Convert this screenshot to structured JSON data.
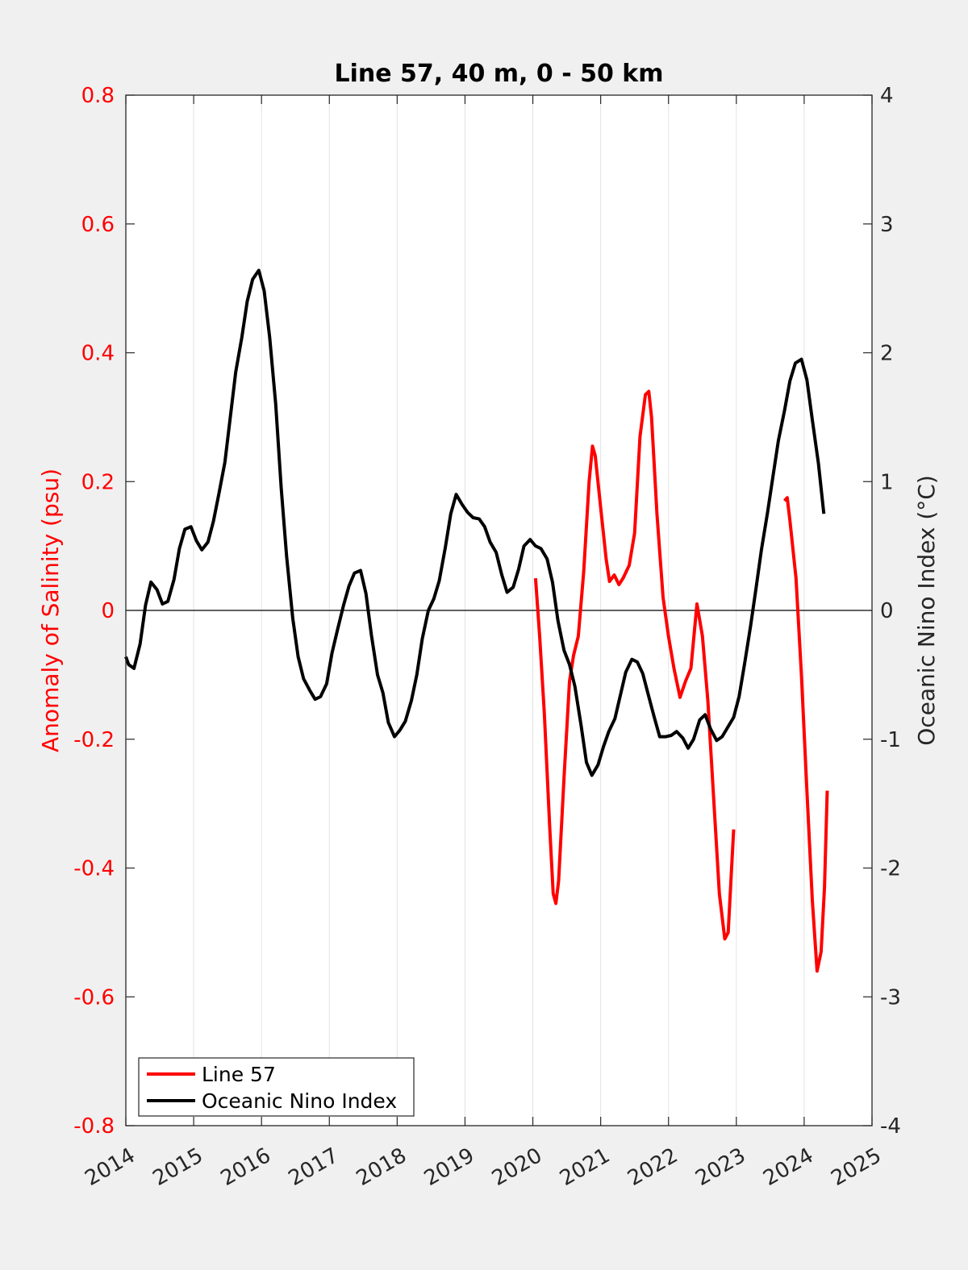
{
  "chart_data": {
    "type": "line",
    "title": "Line 57, 40 m, 0 - 50 km",
    "xlabel": "",
    "ylabel_left": "Anomaly of Salinity (psu)",
    "ylabel_right": "Oceanic Nino Index (°C)",
    "xlim": [
      2014,
      2025
    ],
    "ylim_left": [
      -0.8,
      0.8
    ],
    "ylim_right": [
      -4,
      4
    ],
    "x_ticks": [
      2014,
      2015,
      2016,
      2017,
      2018,
      2019,
      2020,
      2021,
      2022,
      2023,
      2024,
      2025
    ],
    "x_tick_labels": [
      "2014",
      "2015",
      "2016",
      "2017",
      "2018",
      "2019",
      "2020",
      "2021",
      "2022",
      "2023",
      "2024",
      "2025"
    ],
    "y_left_ticks": [
      -0.8,
      -0.6,
      -0.4,
      -0.2,
      0,
      0.2,
      0.4,
      0.6,
      0.8
    ],
    "y_left_tick_labels": [
      "-0.8",
      "-0.6",
      "-0.4",
      "-0.2",
      "0",
      "0.2",
      "0.4",
      "0.6",
      "0.8"
    ],
    "y_right_ticks": [
      -4,
      -3,
      -2,
      -1,
      0,
      1,
      2,
      3,
      4
    ],
    "y_right_tick_labels": [
      "-4",
      "-3",
      "-2",
      "-1",
      "0",
      "1",
      "2",
      "3",
      "4"
    ],
    "grid": "vertical",
    "legend_position": "bottom-left",
    "legend": [
      "Line 57",
      "Oceanic Nino Index"
    ],
    "series": [
      {
        "name": "Line 57",
        "axis": "left",
        "color": "#ff0000",
        "segments": [
          [
            [
              2020.04,
              0.05
            ],
            [
              2020.1,
              -0.04
            ],
            [
              2020.17,
              -0.16
            ],
            [
              2020.25,
              -0.34
            ],
            [
              2020.3,
              -0.44
            ],
            [
              2020.34,
              -0.455
            ],
            [
              2020.38,
              -0.42
            ],
            [
              2020.46,
              -0.26
            ],
            [
              2020.54,
              -0.11
            ],
            [
              2020.6,
              -0.07
            ],
            [
              2020.67,
              -0.04
            ],
            [
              2020.75,
              0.06
            ],
            [
              2020.83,
              0.2
            ],
            [
              2020.88,
              0.255
            ],
            [
              2020.92,
              0.24
            ],
            [
              2021.0,
              0.16
            ],
            [
              2021.08,
              0.08
            ],
            [
              2021.13,
              0.045
            ],
            [
              2021.2,
              0.055
            ],
            [
              2021.27,
              0.04
            ],
            [
              2021.33,
              0.05
            ],
            [
              2021.42,
              0.07
            ],
            [
              2021.5,
              0.12
            ],
            [
              2021.58,
              0.27
            ],
            [
              2021.66,
              0.335
            ],
            [
              2021.71,
              0.34
            ],
            [
              2021.75,
              0.3
            ],
            [
              2021.83,
              0.15
            ],
            [
              2021.92,
              0.02
            ],
            [
              2022.0,
              -0.04
            ],
            [
              2022.08,
              -0.09
            ],
            [
              2022.17,
              -0.135
            ],
            [
              2022.25,
              -0.11
            ],
            [
              2022.33,
              -0.09
            ],
            [
              2022.42,
              0.01
            ],
            [
              2022.5,
              -0.04
            ],
            [
              2022.58,
              -0.14
            ],
            [
              2022.67,
              -0.3
            ],
            [
              2022.75,
              -0.44
            ],
            [
              2022.83,
              -0.51
            ],
            [
              2022.88,
              -0.5
            ],
            [
              2022.92,
              -0.42
            ],
            [
              2022.96,
              -0.34
            ]
          ],
          [
            [
              2023.71,
              0.17
            ],
            [
              2023.75,
              0.175
            ],
            [
              2023.79,
              0.14
            ],
            [
              2023.88,
              0.05
            ],
            [
              2023.96,
              -0.1
            ],
            [
              2024.04,
              -0.28
            ],
            [
              2024.12,
              -0.45
            ],
            [
              2024.19,
              -0.56
            ],
            [
              2024.25,
              -0.53
            ],
            [
              2024.3,
              -0.43
            ],
            [
              2024.34,
              -0.28
            ]
          ]
        ]
      },
      {
        "name": "Oceanic Nino Index",
        "axis": "right",
        "color": "#000000",
        "segments": [
          [
            [
              2014.0,
              -0.36
            ],
            [
              2014.04,
              -0.42
            ],
            [
              2014.12,
              -0.45
            ],
            [
              2014.21,
              -0.26
            ],
            [
              2014.29,
              0.04
            ],
            [
              2014.37,
              0.22
            ],
            [
              2014.46,
              0.16
            ],
            [
              2014.54,
              0.05
            ],
            [
              2014.62,
              0.07
            ],
            [
              2014.71,
              0.24
            ],
            [
              2014.79,
              0.48
            ],
            [
              2014.87,
              0.63
            ],
            [
              2014.96,
              0.65
            ],
            [
              2015.04,
              0.54
            ],
            [
              2015.12,
              0.47
            ],
            [
              2015.21,
              0.53
            ],
            [
              2015.29,
              0.69
            ],
            [
              2015.37,
              0.9
            ],
            [
              2015.46,
              1.15
            ],
            [
              2015.54,
              1.5
            ],
            [
              2015.62,
              1.85
            ],
            [
              2015.71,
              2.12
            ],
            [
              2015.79,
              2.4
            ],
            [
              2015.87,
              2.57
            ],
            [
              2015.96,
              2.64
            ],
            [
              2016.04,
              2.48
            ],
            [
              2016.12,
              2.12
            ],
            [
              2016.21,
              1.6
            ],
            [
              2016.29,
              0.95
            ],
            [
              2016.37,
              0.42
            ],
            [
              2016.46,
              -0.06
            ],
            [
              2016.54,
              -0.36
            ],
            [
              2016.62,
              -0.53
            ],
            [
              2016.71,
              -0.62
            ],
            [
              2016.79,
              -0.69
            ],
            [
              2016.87,
              -0.67
            ],
            [
              2016.96,
              -0.57
            ],
            [
              2017.04,
              -0.33
            ],
            [
              2017.12,
              -0.15
            ],
            [
              2017.21,
              0.04
            ],
            [
              2017.29,
              0.19
            ],
            [
              2017.37,
              0.29
            ],
            [
              2017.46,
              0.31
            ],
            [
              2017.54,
              0.13
            ],
            [
              2017.62,
              -0.19
            ],
            [
              2017.71,
              -0.5
            ],
            [
              2017.79,
              -0.64
            ],
            [
              2017.87,
              -0.87
            ],
            [
              2017.96,
              -0.98
            ],
            [
              2018.04,
              -0.93
            ],
            [
              2018.12,
              -0.86
            ],
            [
              2018.21,
              -0.7
            ],
            [
              2018.29,
              -0.5
            ],
            [
              2018.37,
              -0.22
            ],
            [
              2018.46,
              0.0
            ],
            [
              2018.54,
              0.09
            ],
            [
              2018.62,
              0.23
            ],
            [
              2018.71,
              0.49
            ],
            [
              2018.79,
              0.75
            ],
            [
              2018.87,
              0.9
            ],
            [
              2018.96,
              0.82
            ],
            [
              2019.04,
              0.76
            ],
            [
              2019.12,
              0.72
            ],
            [
              2019.21,
              0.71
            ],
            [
              2019.29,
              0.65
            ],
            [
              2019.37,
              0.53
            ],
            [
              2019.46,
              0.45
            ],
            [
              2019.54,
              0.28
            ],
            [
              2019.62,
              0.14
            ],
            [
              2019.71,
              0.18
            ],
            [
              2019.79,
              0.32
            ],
            [
              2019.87,
              0.5
            ],
            [
              2019.96,
              0.55
            ],
            [
              2020.04,
              0.5
            ],
            [
              2020.12,
              0.48
            ],
            [
              2020.21,
              0.4
            ],
            [
              2020.29,
              0.22
            ],
            [
              2020.37,
              -0.08
            ],
            [
              2020.46,
              -0.31
            ],
            [
              2020.54,
              -0.42
            ],
            [
              2020.62,
              -0.59
            ],
            [
              2020.71,
              -0.89
            ],
            [
              2020.79,
              -1.18
            ],
            [
              2020.87,
              -1.28
            ],
            [
              2020.96,
              -1.2
            ],
            [
              2021.04,
              -1.06
            ],
            [
              2021.12,
              -0.94
            ],
            [
              2021.21,
              -0.84
            ],
            [
              2021.29,
              -0.66
            ],
            [
              2021.37,
              -0.48
            ],
            [
              2021.46,
              -0.38
            ],
            [
              2021.54,
              -0.4
            ],
            [
              2021.62,
              -0.49
            ],
            [
              2021.71,
              -0.67
            ],
            [
              2021.79,
              -0.83
            ],
            [
              2021.87,
              -0.98
            ],
            [
              2021.96,
              -0.98
            ],
            [
              2022.04,
              -0.97
            ],
            [
              2022.12,
              -0.94
            ],
            [
              2022.21,
              -0.99
            ],
            [
              2022.29,
              -1.07
            ],
            [
              2022.37,
              -1.0
            ],
            [
              2022.46,
              -0.85
            ],
            [
              2022.54,
              -0.81
            ],
            [
              2022.62,
              -0.92
            ],
            [
              2022.71,
              -1.01
            ],
            [
              2022.79,
              -0.98
            ],
            [
              2022.87,
              -0.91
            ],
            [
              2022.96,
              -0.83
            ],
            [
              2023.04,
              -0.67
            ],
            [
              2023.12,
              -0.42
            ],
            [
              2023.21,
              -0.12
            ],
            [
              2023.29,
              0.17
            ],
            [
              2023.37,
              0.47
            ],
            [
              2023.46,
              0.76
            ],
            [
              2023.54,
              1.04
            ],
            [
              2023.62,
              1.32
            ],
            [
              2023.71,
              1.55
            ],
            [
              2023.79,
              1.78
            ],
            [
              2023.87,
              1.92
            ],
            [
              2023.96,
              1.95
            ],
            [
              2024.04,
              1.79
            ],
            [
              2024.12,
              1.48
            ],
            [
              2024.21,
              1.14
            ],
            [
              2024.29,
              0.75
            ]
          ]
        ]
      }
    ]
  }
}
